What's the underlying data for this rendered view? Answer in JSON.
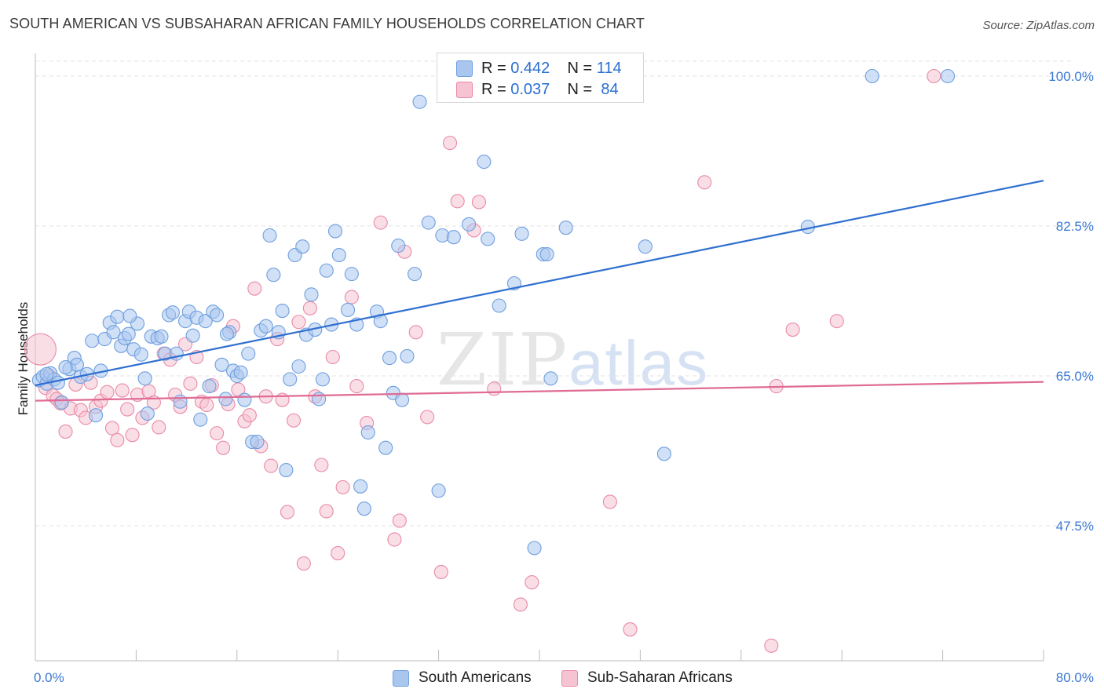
{
  "title": "SOUTH AMERICAN VS SUBSAHARAN AFRICAN FAMILY HOUSEHOLDS CORRELATION CHART",
  "source": "Source: ZipAtlas.com",
  "watermark": {
    "zip": "ZIP",
    "atlas": "atlas"
  },
  "legend": {
    "r_label": "R =",
    "n_label": "N =",
    "series": [
      {
        "r": "0.442",
        "n": "114"
      },
      {
        "r": "0.037",
        "n": "84"
      }
    ]
  },
  "colors": {
    "blue_fill": "#a9c6ef",
    "blue_stroke": "#6f9fdf",
    "blue_line": "#2f6fd0",
    "pink_fill": "#f6c3d2",
    "pink_stroke": "#e98aa8",
    "pink_line": "#e06b95",
    "tick_text": "#3a78d4",
    "grid": "#e3e3e3"
  },
  "chart_data": {
    "type": "scatter",
    "title": "SOUTH AMERICAN VS SUBSAHARAN AFRICAN FAMILY HOUSEHOLDS CORRELATION CHART",
    "xlabel": "",
    "ylabel": "Family Households",
    "xlim": [
      0,
      80
    ],
    "ylim": [
      29,
      101
    ],
    "x_tick_labels": [
      "0.0%",
      "80.0%"
    ],
    "y_ticks": [
      47.5,
      65.0,
      82.5,
      100.0
    ],
    "y_tick_labels": [
      "47.5%",
      "65.0%",
      "82.5%",
      "100.0%"
    ],
    "grid": true,
    "legend_placement": "top-center",
    "series": [
      {
        "name": "South Americans",
        "trend": {
          "x": [
            0,
            80
          ],
          "y": [
            63.9,
            87.8
          ]
        },
        "points": [
          [
            0.3,
            64.5
          ],
          [
            0.6,
            64.9
          ],
          [
            0.9,
            64.1
          ],
          [
            1.2,
            65.3
          ],
          [
            1.5,
            64.6
          ],
          [
            1.8,
            64.2
          ],
          [
            2.1,
            61.9
          ],
          [
            2.7,
            65.8
          ],
          [
            3.1,
            67.1
          ],
          [
            3.3,
            66.3
          ],
          [
            3.6,
            64.9
          ],
          [
            4.1,
            65.2
          ],
          [
            4.5,
            69.1
          ],
          [
            4.8,
            60.4
          ],
          [
            5.2,
            65.6
          ],
          [
            5.5,
            69.3
          ],
          [
            5.9,
            71.2
          ],
          [
            6.2,
            70.1
          ],
          [
            6.5,
            71.9
          ],
          [
            6.8,
            68.5
          ],
          [
            7.1,
            69.4
          ],
          [
            7.4,
            69.9
          ],
          [
            7.8,
            68.1
          ],
          [
            8.1,
            71.1
          ],
          [
            8.4,
            67.5
          ],
          [
            8.7,
            64.7
          ],
          [
            8.9,
            60.6
          ],
          [
            9.2,
            69.6
          ],
          [
            9.7,
            69.4
          ],
          [
            10.0,
            69.6
          ],
          [
            10.3,
            67.6
          ],
          [
            10.6,
            72.1
          ],
          [
            10.9,
            72.4
          ],
          [
            11.2,
            67.6
          ],
          [
            11.5,
            62.0
          ],
          [
            11.9,
            71.4
          ],
          [
            12.2,
            72.5
          ],
          [
            12.5,
            69.7
          ],
          [
            12.8,
            71.8
          ],
          [
            13.1,
            59.9
          ],
          [
            13.5,
            71.4
          ],
          [
            13.8,
            63.8
          ],
          [
            14.1,
            72.5
          ],
          [
            14.4,
            72.1
          ],
          [
            14.8,
            66.3
          ],
          [
            15.1,
            62.3
          ],
          [
            15.4,
            70.1
          ],
          [
            15.7,
            65.6
          ],
          [
            16.0,
            65.0
          ],
          [
            16.3,
            65.4
          ],
          [
            16.6,
            62.2
          ],
          [
            16.9,
            67.6
          ],
          [
            17.2,
            57.3
          ],
          [
            17.6,
            57.3
          ],
          [
            17.9,
            70.3
          ],
          [
            18.3,
            70.8
          ],
          [
            18.6,
            81.4
          ],
          [
            18.9,
            76.8
          ],
          [
            19.3,
            70.1
          ],
          [
            19.6,
            72.6
          ],
          [
            19.9,
            54.0
          ],
          [
            20.2,
            64.6
          ],
          [
            20.6,
            79.1
          ],
          [
            20.9,
            66.1
          ],
          [
            21.2,
            80.1
          ],
          [
            21.5,
            69.8
          ],
          [
            21.9,
            74.5
          ],
          [
            22.2,
            70.4
          ],
          [
            22.5,
            62.3
          ],
          [
            22.8,
            64.6
          ],
          [
            23.1,
            77.3
          ],
          [
            23.5,
            71.0
          ],
          [
            23.8,
            81.9
          ],
          [
            24.1,
            79.1
          ],
          [
            24.8,
            72.7
          ],
          [
            25.1,
            76.9
          ],
          [
            25.5,
            71.0
          ],
          [
            25.8,
            52.1
          ],
          [
            26.1,
            49.5
          ],
          [
            26.4,
            58.4
          ],
          [
            27.1,
            72.5
          ],
          [
            27.4,
            71.4
          ],
          [
            27.8,
            56.6
          ],
          [
            28.1,
            67.1
          ],
          [
            28.4,
            63.0
          ],
          [
            28.8,
            80.2
          ],
          [
            29.1,
            62.2
          ],
          [
            29.5,
            67.3
          ],
          [
            30.1,
            76.9
          ],
          [
            30.5,
            97.0
          ],
          [
            31.2,
            82.9
          ],
          [
            32.0,
            51.6
          ],
          [
            32.3,
            81.4
          ],
          [
            33.2,
            81.2
          ],
          [
            34.4,
            82.7
          ],
          [
            35.6,
            90.0
          ],
          [
            35.9,
            81.0
          ],
          [
            36.8,
            73.2
          ],
          [
            38.0,
            75.8
          ],
          [
            38.6,
            81.6
          ],
          [
            39.6,
            44.9
          ],
          [
            40.3,
            79.2
          ],
          [
            40.6,
            79.2
          ],
          [
            40.9,
            64.7
          ],
          [
            42.1,
            82.3
          ],
          [
            48.4,
            80.1
          ],
          [
            49.9,
            55.9
          ],
          [
            61.3,
            82.4
          ],
          [
            66.4,
            100.0
          ],
          [
            72.4,
            100.0
          ],
          [
            0.9,
            65.2
          ],
          [
            2.4,
            66.0
          ],
          [
            7.5,
            72.0
          ],
          [
            15.2,
            69.9
          ]
        ]
      },
      {
        "name": "Sub-Saharan Africans",
        "trend": {
          "x": [
            0,
            80
          ],
          "y": [
            62.1,
            64.3
          ]
        },
        "points": [
          [
            0.4,
            68.1
          ],
          [
            0.8,
            63.6
          ],
          [
            1.1,
            65.0
          ],
          [
            1.4,
            62.7
          ],
          [
            1.7,
            62.3
          ],
          [
            2.0,
            61.8
          ],
          [
            2.4,
            58.5
          ],
          [
            2.8,
            61.2
          ],
          [
            3.2,
            64.0
          ],
          [
            3.6,
            61.0
          ],
          [
            4.0,
            60.1
          ],
          [
            4.4,
            64.2
          ],
          [
            4.8,
            61.4
          ],
          [
            5.2,
            62.1
          ],
          [
            5.7,
            63.1
          ],
          [
            6.1,
            58.9
          ],
          [
            6.5,
            57.5
          ],
          [
            6.9,
            63.3
          ],
          [
            7.3,
            61.1
          ],
          [
            7.7,
            58.1
          ],
          [
            8.1,
            62.8
          ],
          [
            8.5,
            60.1
          ],
          [
            9.0,
            63.2
          ],
          [
            9.4,
            61.9
          ],
          [
            9.8,
            59.0
          ],
          [
            10.2,
            67.6
          ],
          [
            10.7,
            66.9
          ],
          [
            11.1,
            62.8
          ],
          [
            11.5,
            61.4
          ],
          [
            11.9,
            68.7
          ],
          [
            12.3,
            64.1
          ],
          [
            12.8,
            67.2
          ],
          [
            13.2,
            62.0
          ],
          [
            13.6,
            61.6
          ],
          [
            14.0,
            63.9
          ],
          [
            14.4,
            58.3
          ],
          [
            14.9,
            56.6
          ],
          [
            15.3,
            61.7
          ],
          [
            15.7,
            70.8
          ],
          [
            16.1,
            63.4
          ],
          [
            16.6,
            59.7
          ],
          [
            17.0,
            60.4
          ],
          [
            17.4,
            75.2
          ],
          [
            17.9,
            56.8
          ],
          [
            18.3,
            62.6
          ],
          [
            18.7,
            54.5
          ],
          [
            19.2,
            69.3
          ],
          [
            19.6,
            62.2
          ],
          [
            20.0,
            49.1
          ],
          [
            20.5,
            59.8
          ],
          [
            20.9,
            71.3
          ],
          [
            21.3,
            43.1
          ],
          [
            21.8,
            72.9
          ],
          [
            22.2,
            62.6
          ],
          [
            22.7,
            54.6
          ],
          [
            23.1,
            49.2
          ],
          [
            23.6,
            67.2
          ],
          [
            24.0,
            44.3
          ],
          [
            24.4,
            52.0
          ],
          [
            25.1,
            74.2
          ],
          [
            25.5,
            63.8
          ],
          [
            26.3,
            59.5
          ],
          [
            27.4,
            82.9
          ],
          [
            28.5,
            45.9
          ],
          [
            28.9,
            48.1
          ],
          [
            29.3,
            79.5
          ],
          [
            30.2,
            70.1
          ],
          [
            31.1,
            60.2
          ],
          [
            32.2,
            42.1
          ],
          [
            32.9,
            92.2
          ],
          [
            33.5,
            85.4
          ],
          [
            34.8,
            82.0
          ],
          [
            35.2,
            85.3
          ],
          [
            36.4,
            63.5
          ],
          [
            38.5,
            38.3
          ],
          [
            39.4,
            40.9
          ],
          [
            45.6,
            50.3
          ],
          [
            47.2,
            35.4
          ],
          [
            53.1,
            87.6
          ],
          [
            58.4,
            33.5
          ],
          [
            58.8,
            63.8
          ],
          [
            60.1,
            70.4
          ],
          [
            63.6,
            71.4
          ],
          [
            71.3,
            100.0
          ]
        ]
      }
    ]
  },
  "bottom_legend": [
    "South Americans",
    "Sub-Saharan Africans"
  ]
}
